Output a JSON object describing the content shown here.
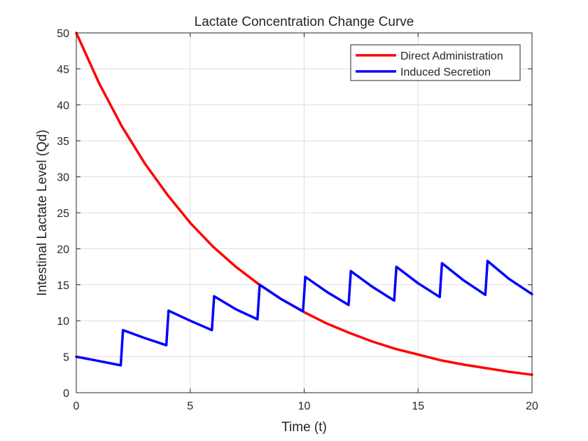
{
  "chart_data": {
    "type": "line",
    "title": "Lactate Concentration Change Curve",
    "xlabel": "Time (t)",
    "ylabel": "Intestinal Lactate Level (Qd)",
    "xlim": [
      0,
      20
    ],
    "ylim": [
      0,
      50
    ],
    "xticks": [
      0,
      5,
      10,
      15,
      20
    ],
    "yticks": [
      0,
      5,
      10,
      15,
      20,
      25,
      30,
      35,
      40,
      45,
      50
    ],
    "grid": true,
    "legend_position": "top-right",
    "series": [
      {
        "name": "Direct Administration",
        "color": "#ff0000",
        "x": [
          0,
          1,
          2,
          3,
          4,
          5,
          6,
          7,
          8,
          9,
          10,
          11,
          12,
          13,
          14,
          15,
          16,
          17,
          18,
          19,
          20
        ],
        "y": [
          50,
          43.0,
          37.0,
          31.9,
          27.5,
          23.6,
          20.3,
          17.5,
          15.1,
          13.0,
          11.2,
          9.6,
          8.3,
          7.1,
          6.1,
          5.3,
          4.5,
          3.9,
          3.4,
          2.9,
          2.5
        ]
      },
      {
        "name": "Induced Secretion",
        "color": "#0000ff",
        "x": [
          0,
          1,
          1.95,
          2.05,
          3,
          3.95,
          4.05,
          5,
          5.95,
          6.05,
          7,
          7.95,
          8.05,
          9,
          9.95,
          10.05,
          11,
          11.95,
          12.05,
          13,
          13.95,
          14.05,
          15,
          15.95,
          16.05,
          17,
          17.95,
          18.05,
          19,
          20
        ],
        "y": [
          5,
          4.4,
          3.8,
          8.7,
          7.6,
          6.6,
          11.4,
          10.0,
          8.7,
          13.4,
          11.6,
          10.2,
          15.0,
          13.0,
          11.3,
          16.1,
          14.0,
          12.2,
          16.9,
          14.7,
          12.8,
          17.5,
          15.2,
          13.3,
          18.0,
          15.6,
          13.6,
          18.3,
          15.8,
          13.7
        ]
      }
    ]
  }
}
